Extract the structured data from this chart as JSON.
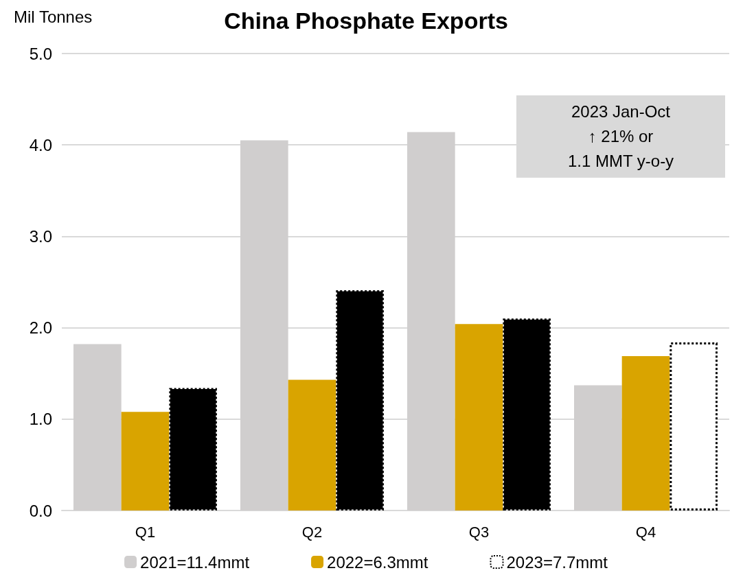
{
  "chart_data": {
    "type": "bar",
    "title": "China Phosphate Exports",
    "ylabel": "Mil Tonnes",
    "categories": [
      "Q1",
      "Q2",
      "Q3",
      "Q4"
    ],
    "series": [
      {
        "name": "2021=11.4mmt",
        "color": "#d0cece",
        "values": [
          1.82,
          4.05,
          4.14,
          1.37
        ]
      },
      {
        "name": "2022=6.3mmt",
        "color": "#d9a400",
        "values": [
          1.08,
          1.43,
          2.04,
          1.69
        ]
      },
      {
        "name": "2023=7.7mmt",
        "color": "#000000",
        "colors": [
          "#000000",
          "#000000",
          "#000000",
          "#ffffff"
        ],
        "line_style": "dotted",
        "values": [
          1.34,
          2.41,
          2.1,
          1.84
        ]
      }
    ],
    "ylim": [
      0,
      5
    ],
    "yticks": [
      {
        "value": 0,
        "label": "0.0"
      },
      {
        "value": 1,
        "label": "1.0"
      },
      {
        "value": 2,
        "label": "2.0"
      },
      {
        "value": 3,
        "label": "3.0"
      },
      {
        "value": 4,
        "label": "4.0"
      },
      {
        "value": 5,
        "label": "5.0"
      }
    ],
    "grid": "y",
    "legend": "bottom",
    "annotations": [
      "2023 Jan-Oct\n↑ 21% or\n1.1 MMT y-o-y"
    ]
  }
}
